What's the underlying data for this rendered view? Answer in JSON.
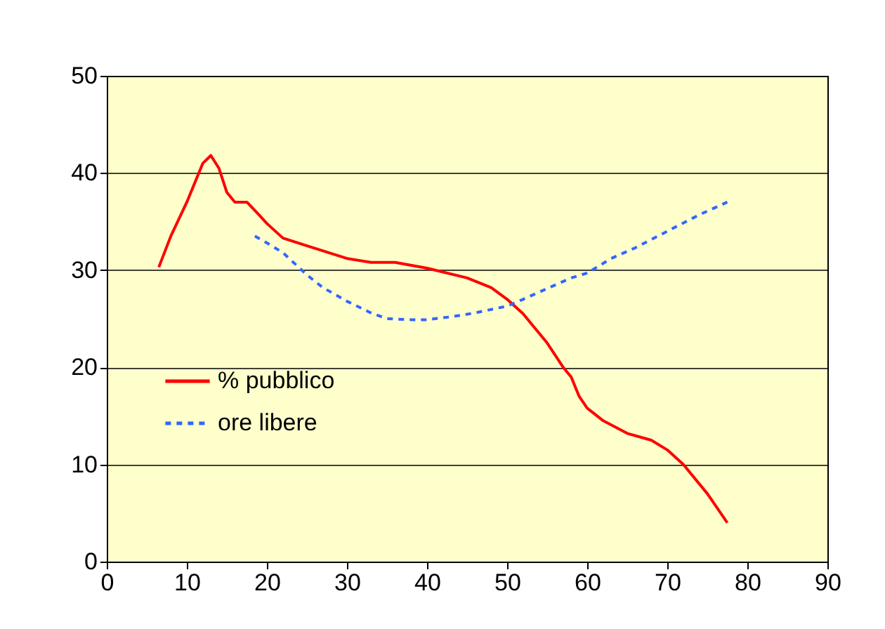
{
  "chart_data": {
    "type": "line",
    "xlim": [
      0,
      90
    ],
    "xticks": [
      0,
      10,
      20,
      30,
      40,
      50,
      60,
      70,
      80,
      90
    ],
    "ylim": [
      0,
      50
    ],
    "yticks": [
      0,
      10,
      20,
      30,
      40,
      50
    ],
    "grid": "y",
    "legend": "bottom left",
    "marker": "none",
    "series": [
      {
        "name": "% pubblico",
        "color": "#ff0000",
        "line_style": "solid",
        "x": [
          6.5,
          8,
          10,
          12,
          13,
          14,
          15,
          16,
          17.5,
          19,
          20,
          22,
          25,
          30,
          33,
          36,
          40,
          45,
          48,
          50,
          52,
          55,
          57,
          58,
          59,
          60,
          62,
          65,
          68,
          70,
          72,
          75,
          77.5
        ],
        "values": [
          30.3,
          33.5,
          37,
          41,
          41.8,
          40.5,
          38,
          37,
          37,
          35.7,
          34.8,
          33.3,
          32.5,
          31.2,
          30.8,
          30.8,
          30.2,
          29.2,
          28.2,
          27,
          25.5,
          22.5,
          20,
          19,
          17,
          15.8,
          14.5,
          13.2,
          12.5,
          11.5,
          10,
          7,
          4
        ]
      },
      {
        "name": "ore libere",
        "color": "#3366ff",
        "line_style": "dotted",
        "x": [
          18.5,
          20,
          22,
          25,
          27,
          30,
          33,
          35,
          38,
          40,
          43,
          46,
          50,
          52,
          55,
          58,
          60,
          63,
          66,
          70,
          74,
          77.5
        ],
        "values": [
          33.5,
          32.8,
          31.8,
          29.5,
          28.2,
          26.8,
          25.6,
          25,
          24.9,
          24.9,
          25.2,
          25.6,
          26.3,
          27,
          28.1,
          29.2,
          29.7,
          31.2,
          32.3,
          34,
          35.7,
          37
        ]
      }
    ]
  }
}
